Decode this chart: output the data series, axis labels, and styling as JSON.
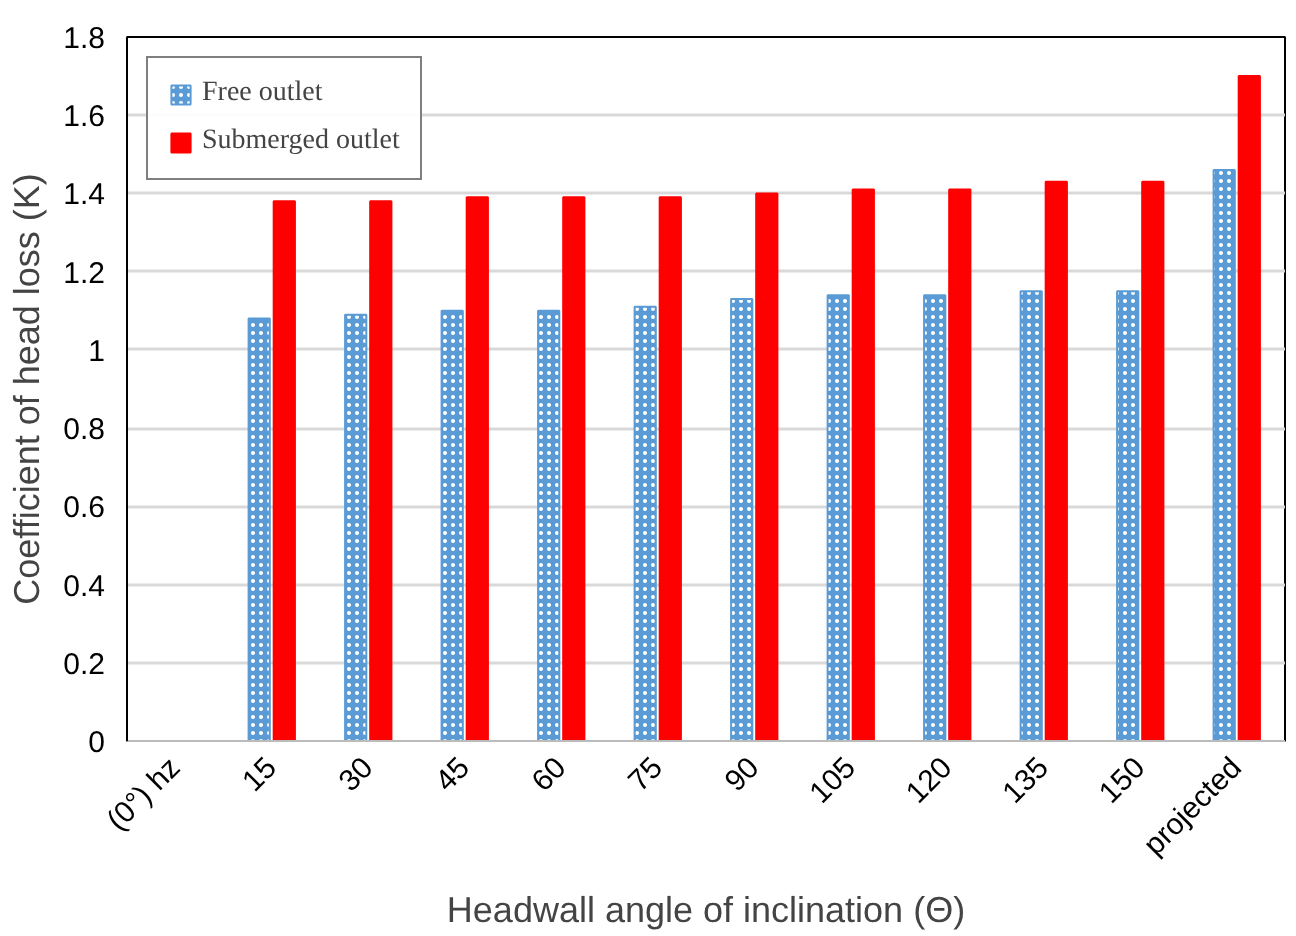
{
  "chart_data": {
    "type": "bar",
    "xlabel": "Headwall angle of inclination (Θ)",
    "ylabel": "Coefficient of head loss (K)",
    "categories": [
      "(0°) hz",
      "15",
      "30",
      "45",
      "60",
      "75",
      "90",
      "105",
      "120",
      "135",
      "150",
      "projected"
    ],
    "series": [
      {
        "name": "Free outlet",
        "color": "#5b9bd5",
        "values": [
          null,
          1.08,
          1.09,
          1.1,
          1.1,
          1.11,
          1.13,
          1.14,
          1.14,
          1.15,
          1.15,
          1.46
        ]
      },
      {
        "name": "Submerged outlet",
        "color": "#ff0000",
        "values": [
          null,
          1.38,
          1.38,
          1.39,
          1.39,
          1.39,
          1.4,
          1.41,
          1.41,
          1.43,
          1.43,
          1.7
        ]
      }
    ],
    "ylim": [
      0,
      1.8
    ],
    "yticks": [
      0,
      0.2,
      0.4,
      0.6,
      0.8,
      1,
      1.2,
      1.4,
      1.6,
      1.8
    ],
    "grid": "y",
    "legend": "top left"
  }
}
